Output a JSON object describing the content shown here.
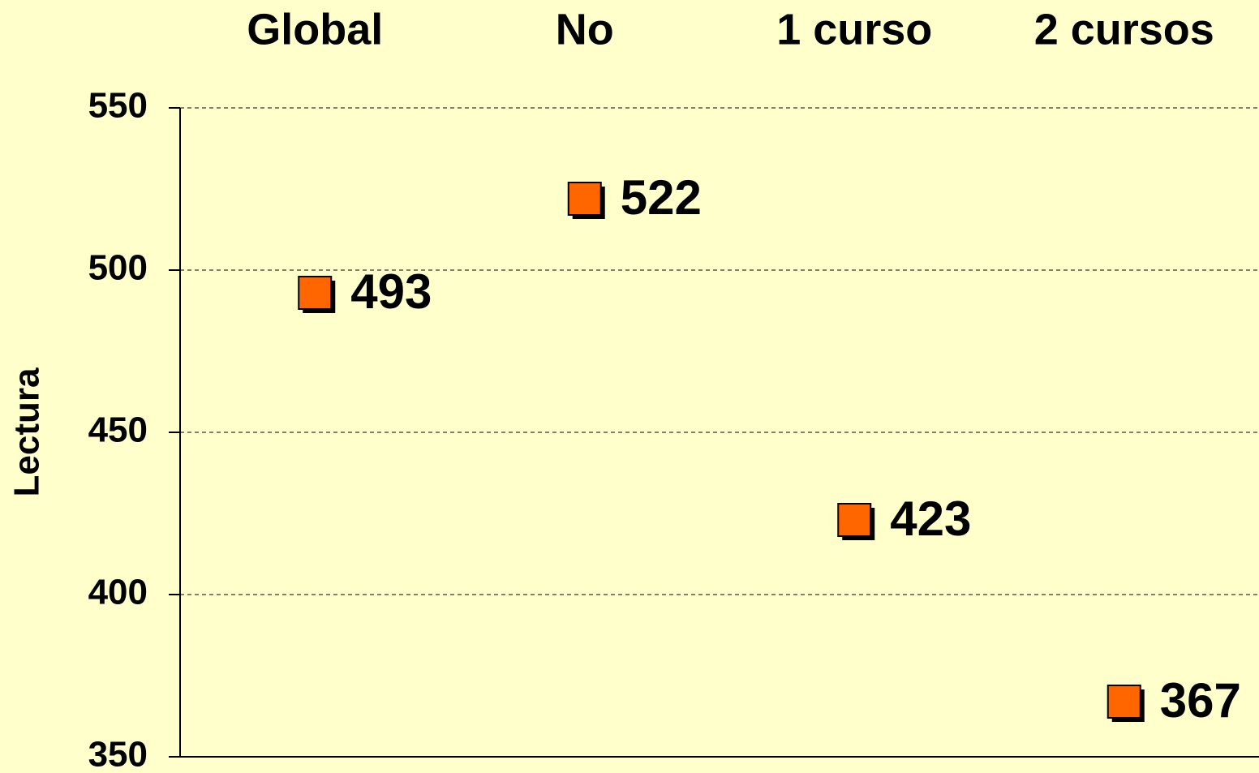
{
  "chart_data": {
    "type": "scatter",
    "categories": [
      "Global",
      "No",
      "1 curso",
      "2 cursos"
    ],
    "y_label": "Lectura",
    "series": [
      {
        "color": "#ff6600",
        "values": [
          493,
          522,
          423,
          367
        ]
      }
    ],
    "ylim": [
      350,
      550
    ],
    "yticks": [
      350,
      400,
      450,
      500,
      550
    ],
    "grid": true
  }
}
